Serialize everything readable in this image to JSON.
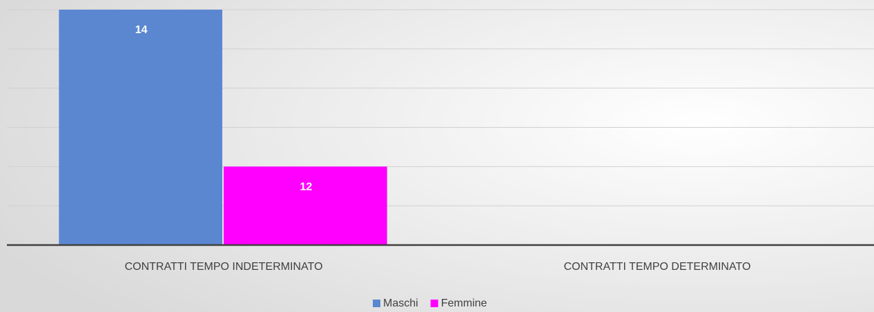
{
  "chart_data": {
    "type": "bar",
    "categories": [
      "CONTRATTI TEMPO INDETERMINATO",
      "CONTRATTI TEMPO DETERMINATO"
    ],
    "series": [
      {
        "name": "Maschi",
        "color": "#5b87d0",
        "values": [
          14,
          null
        ]
      },
      {
        "name": "Femmine",
        "color": "#ff00ff",
        "values": [
          12,
          null
        ]
      }
    ],
    "ylim": [
      11,
      14
    ],
    "yticks": [
      11,
      11.5,
      12,
      12.5,
      13,
      13.5,
      14
    ],
    "grid": true,
    "tick_labels": false,
    "legend": "bottom"
  }
}
